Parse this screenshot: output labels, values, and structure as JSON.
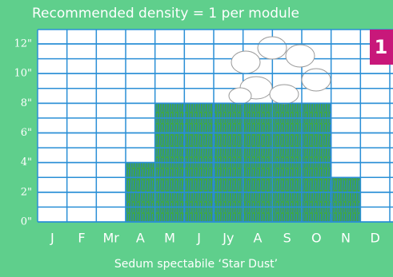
{
  "chart_data": {
    "type": "bar",
    "title": "Recommended density = 1 per module",
    "subtitle": "Sedum spectabile ‘Star Dust’",
    "badge": "1",
    "categories": [
      "J",
      "F",
      "Mr",
      "A",
      "M",
      "J",
      "Jy",
      "A",
      "S",
      "O",
      "N",
      "D"
    ],
    "values": [
      0,
      0,
      0,
      4,
      8,
      8,
      8,
      8,
      8,
      8,
      3,
      0
    ],
    "color": "#3fa64a",
    "ylim": [
      0,
      12
    ],
    "yticks": [
      {
        "value": 0,
        "label": "0\""
      },
      {
        "value": 2,
        "label": "2\""
      },
      {
        "value": 4,
        "label": "4\""
      },
      {
        "value": 6,
        "label": "6\""
      },
      {
        "value": 8,
        "label": "8\""
      },
      {
        "value": 10,
        "label": "10\""
      },
      {
        "value": 12,
        "label": "12\""
      }
    ],
    "grid": true
  }
}
